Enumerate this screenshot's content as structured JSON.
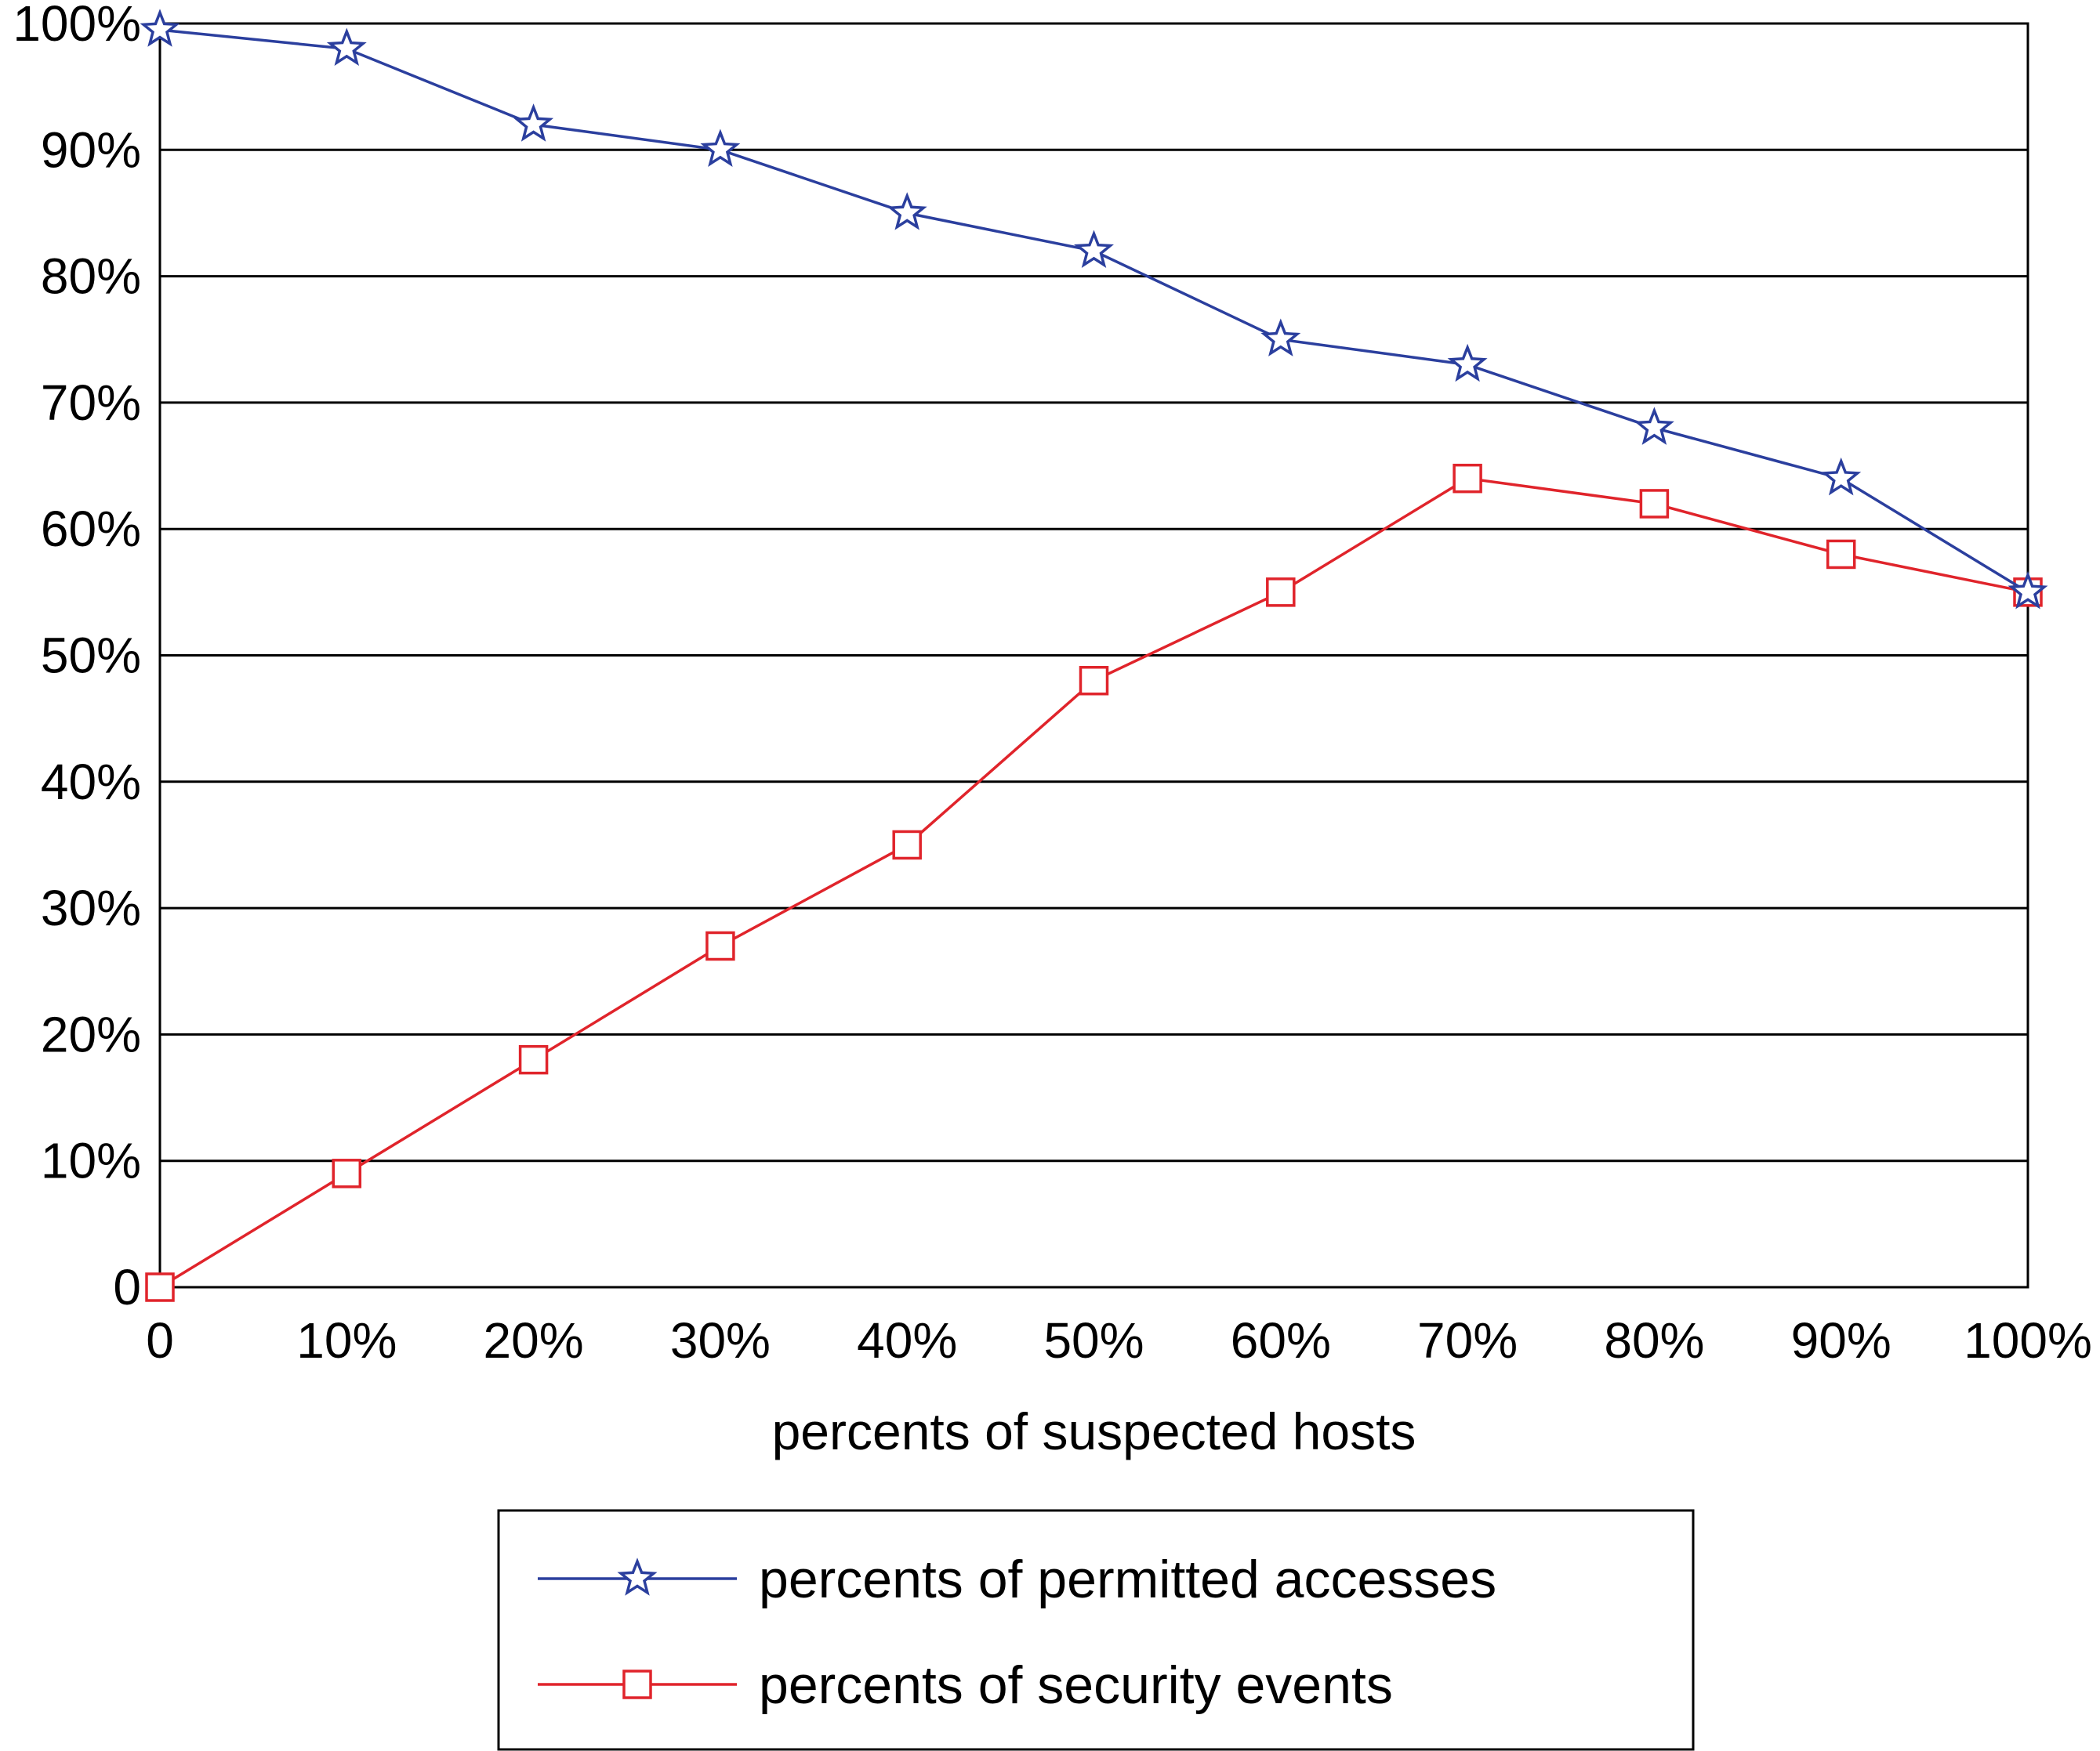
{
  "chart_data": {
    "type": "line",
    "x": [
      0,
      10,
      20,
      30,
      40,
      50,
      60,
      70,
      80,
      90,
      100
    ],
    "x_tick_labels": [
      "0",
      "10%",
      "20%",
      "30%",
      "40%",
      "50%",
      "60%",
      "70%",
      "80%",
      "90%",
      "100%"
    ],
    "y_tick_values": [
      0,
      10,
      20,
      30,
      40,
      50,
      60,
      70,
      80,
      90,
      100
    ],
    "y_tick_labels": [
      "0",
      "10%",
      "20%",
      "30%",
      "40%",
      "50%",
      "60%",
      "70%",
      "80%",
      "90%",
      "100%"
    ],
    "xlim": [
      0,
      100
    ],
    "ylim": [
      0,
      100
    ],
    "xlabel": "percents of suspected hosts",
    "ylabel": "",
    "title": "",
    "grid": "horizontal",
    "legend_placement": "bottom-center, below plot",
    "series": [
      {
        "name": "percents of permitted accesses",
        "marker": "star",
        "color": "#2b3f9e",
        "values": [
          99.5,
          98,
          92,
          90,
          85,
          82,
          75,
          73,
          68,
          64,
          55
        ]
      },
      {
        "name": "percents of security events",
        "marker": "square",
        "color": "#e0242b",
        "values": [
          0,
          9,
          18,
          27,
          35,
          48,
          55,
          64,
          62,
          58,
          55
        ]
      }
    ]
  }
}
